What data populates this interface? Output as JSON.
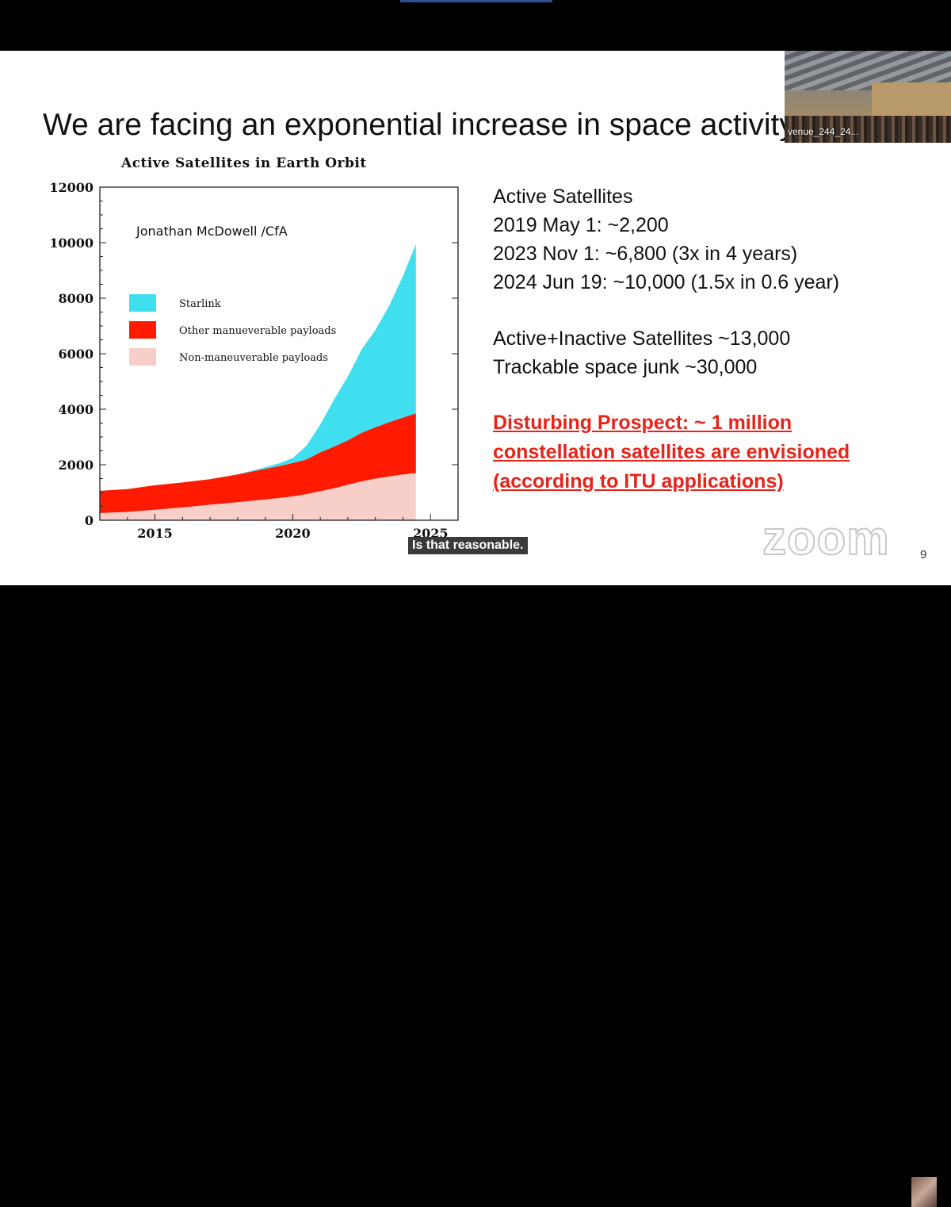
{
  "slide": {
    "title": "We are facing an exponential increase in space activity",
    "page_number": "9"
  },
  "chart_data": {
    "type": "area",
    "title": "Active Satellites in Earth Orbit",
    "annotation": "Jonathan McDowell /CfA",
    "x_ticks": [
      2015,
      2020,
      2025
    ],
    "y_ticks": [
      0,
      2000,
      4000,
      6000,
      8000,
      10000,
      12000
    ],
    "xlim": [
      2013,
      2026
    ],
    "ylim": [
      0,
      12000
    ],
    "legend_position": "top-left",
    "x": [
      2013.0,
      2014.0,
      2015.0,
      2016.0,
      2017.0,
      2018.0,
      2019.0,
      2019.5,
      2020.0,
      2020.5,
      2021.0,
      2021.5,
      2022.0,
      2022.5,
      2023.0,
      2023.5,
      2024.0,
      2024.47
    ],
    "series": [
      {
        "name": "Non-maneuverable payloads",
        "color": "#f8cfc8",
        "values": [
          260,
          300,
          380,
          460,
          560,
          650,
          750,
          800,
          860,
          940,
          1050,
          1150,
          1280,
          1400,
          1500,
          1580,
          1650,
          1700
        ]
      },
      {
        "name": "Other manueverable payloads",
        "color": "#ff1a00",
        "values": [
          800,
          820,
          880,
          900,
          920,
          1000,
          1100,
          1150,
          1200,
          1250,
          1400,
          1500,
          1600,
          1750,
          1850,
          1950,
          2050,
          2150
        ]
      },
      {
        "name": "Starlink",
        "color": "#40dff0",
        "values": [
          0,
          0,
          0,
          0,
          0,
          0,
          60,
          100,
          180,
          500,
          1000,
          1700,
          2300,
          3000,
          3500,
          4200,
          5100,
          6100
        ]
      }
    ]
  },
  "stats": {
    "heading": "Active Satellites",
    "line1": "2019 May 1: ~2,200",
    "line2": "2023 Nov 1: ~6,800 (3x in 4 years)",
    "line3": "2024 Jun 19: ~10,000 (1.5x in 0.6 year)",
    "line4": "Active+Inactive Satellites ~13,000",
    "line5": "Trackable space junk ~30,000"
  },
  "warning": {
    "line1": "Disturbing Prospect: ~ 1 million",
    "line2": "constellation satellites are envisioned",
    "line3": "(according to ITU applications)"
  },
  "caption": "Is that reasonable.",
  "zoom": {
    "logo_text": "zoom",
    "participant_label": "venue_244_24..."
  }
}
